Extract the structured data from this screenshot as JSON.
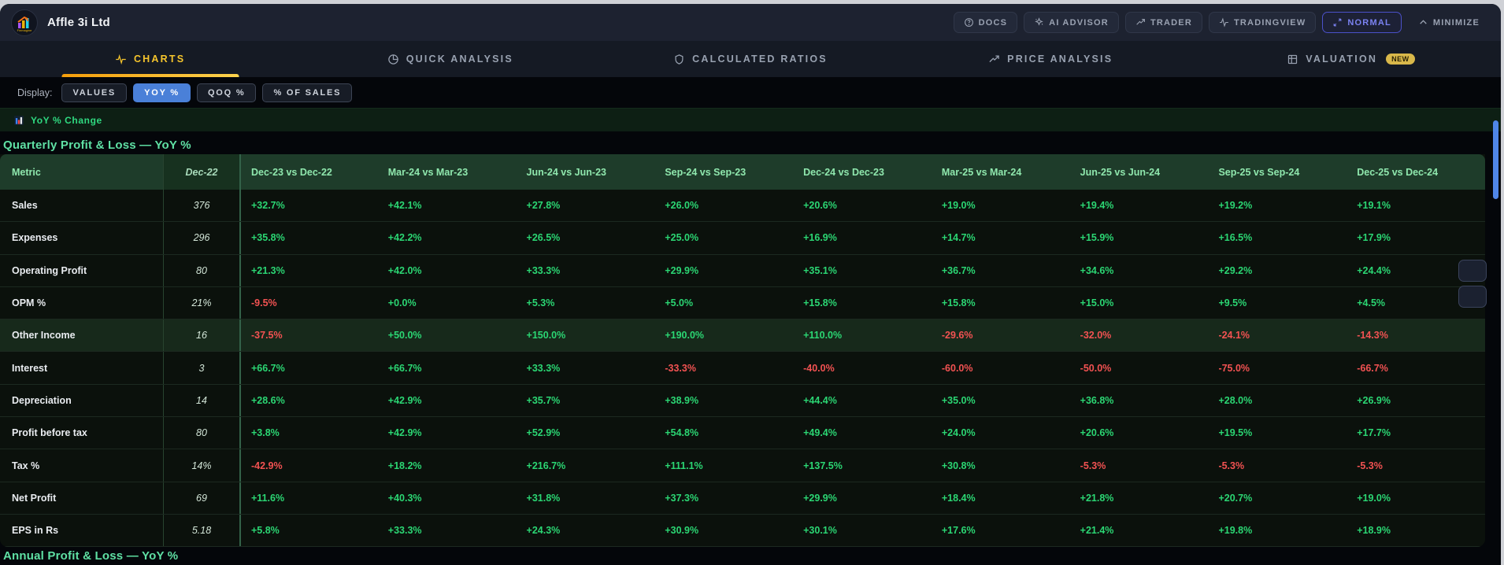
{
  "header": {
    "title": "Affle 3i Ltd",
    "logo_text": "Finmagine",
    "actions": {
      "docs": "DOCS",
      "ai_advisor": "AI ADVISOR",
      "trader": "TRADER",
      "tradingview": "TRADINGVIEW",
      "normal": "NORMAL",
      "minimize": "MINIMIZE"
    }
  },
  "tabs": {
    "charts": "CHARTS",
    "quick_analysis": "QUICK ANALYSIS",
    "calculated_ratios": "CALCULATED RATIOS",
    "price_analysis": "PRICE ANALYSIS",
    "valuation": "VALUATION",
    "valuation_badge": "NEW",
    "active": "CHARTS"
  },
  "display_toggle": {
    "label": "Display:",
    "options": [
      {
        "label": "VALUES",
        "active": false
      },
      {
        "label": "YOY %",
        "active": true
      },
      {
        "label": "QOQ %",
        "active": false
      },
      {
        "label": "% OF SALES",
        "active": false
      }
    ]
  },
  "legend": "YoY % Change",
  "section_title_quarterly": "Quarterly Profit & Loss — YoY %",
  "section_title_annual": "Annual Profit & Loss — YoY %",
  "table": {
    "metric_header": "Metric",
    "base_header": "Dec-22",
    "change_headers": [
      "Dec-23 vs Dec-22",
      "Mar-24 vs Mar-23",
      "Jun-24 vs Jun-23",
      "Sep-24 vs Sep-23",
      "Dec-24 vs Dec-23",
      "Mar-25 vs Mar-24",
      "Jun-25 vs Jun-24",
      "Sep-25 vs Sep-24",
      "Dec-25 vs Dec-24"
    ],
    "rows": [
      {
        "metric": "Sales",
        "base": "376",
        "highlighted": false,
        "changes": [
          "+32.7%",
          "+42.1%",
          "+27.8%",
          "+26.0%",
          "+20.6%",
          "+19.0%",
          "+19.4%",
          "+19.2%",
          "+19.1%"
        ]
      },
      {
        "metric": "Expenses",
        "base": "296",
        "highlighted": false,
        "changes": [
          "+35.8%",
          "+42.2%",
          "+26.5%",
          "+25.0%",
          "+16.9%",
          "+14.7%",
          "+15.9%",
          "+16.5%",
          "+17.9%"
        ]
      },
      {
        "metric": "Operating Profit",
        "base": "80",
        "highlighted": false,
        "changes": [
          "+21.3%",
          "+42.0%",
          "+33.3%",
          "+29.9%",
          "+35.1%",
          "+36.7%",
          "+34.6%",
          "+29.2%",
          "+24.4%"
        ]
      },
      {
        "metric": "OPM %",
        "base": "21%",
        "highlighted": false,
        "changes": [
          "-9.5%",
          "+0.0%",
          "+5.3%",
          "+5.0%",
          "+15.8%",
          "+15.8%",
          "+15.0%",
          "+9.5%",
          "+4.5%"
        ]
      },
      {
        "metric": "Other Income",
        "base": "16",
        "highlighted": true,
        "changes": [
          "-37.5%",
          "+50.0%",
          "+150.0%",
          "+190.0%",
          "+110.0%",
          "-29.6%",
          "-32.0%",
          "-24.1%",
          "-14.3%"
        ]
      },
      {
        "metric": "Interest",
        "base": "3",
        "highlighted": false,
        "changes": [
          "+66.7%",
          "+66.7%",
          "+33.3%",
          "-33.3%",
          "-40.0%",
          "-60.0%",
          "-50.0%",
          "-75.0%",
          "-66.7%"
        ]
      },
      {
        "metric": "Depreciation",
        "base": "14",
        "highlighted": false,
        "changes": [
          "+28.6%",
          "+42.9%",
          "+35.7%",
          "+38.9%",
          "+44.4%",
          "+35.0%",
          "+36.8%",
          "+28.0%",
          "+26.9%"
        ]
      },
      {
        "metric": "Profit before tax",
        "base": "80",
        "highlighted": false,
        "changes": [
          "+3.8%",
          "+42.9%",
          "+52.9%",
          "+54.8%",
          "+49.4%",
          "+24.0%",
          "+20.6%",
          "+19.5%",
          "+17.7%"
        ]
      },
      {
        "metric": "Tax %",
        "base": "14%",
        "highlighted": false,
        "changes": [
          "-42.9%",
          "+18.2%",
          "+216.7%",
          "+111.1%",
          "+137.5%",
          "+30.8%",
          "-5.3%",
          "-5.3%",
          "-5.3%"
        ]
      },
      {
        "metric": "Net Profit",
        "base": "69",
        "highlighted": false,
        "changes": [
          "+11.6%",
          "+40.3%",
          "+31.8%",
          "+37.3%",
          "+29.9%",
          "+18.4%",
          "+21.8%",
          "+20.7%",
          "+19.0%"
        ]
      },
      {
        "metric": "EPS in Rs",
        "base": "5.18",
        "highlighted": false,
        "changes": [
          "+5.8%",
          "+33.3%",
          "+24.3%",
          "+30.9%",
          "+30.1%",
          "+17.6%",
          "+21.4%",
          "+19.8%",
          "+18.9%"
        ]
      }
    ]
  },
  "colors": {
    "positive": "#2bd673",
    "negative": "#f25252",
    "accent_yellow": "#f6c52c",
    "accent_blue": "#4a80d8",
    "accent_indigo": "#7b82f2",
    "table_header_bg": "#1e3c2a",
    "section_green": "#5fe0a4",
    "scrollbar_thumb": "#4f86e8"
  }
}
